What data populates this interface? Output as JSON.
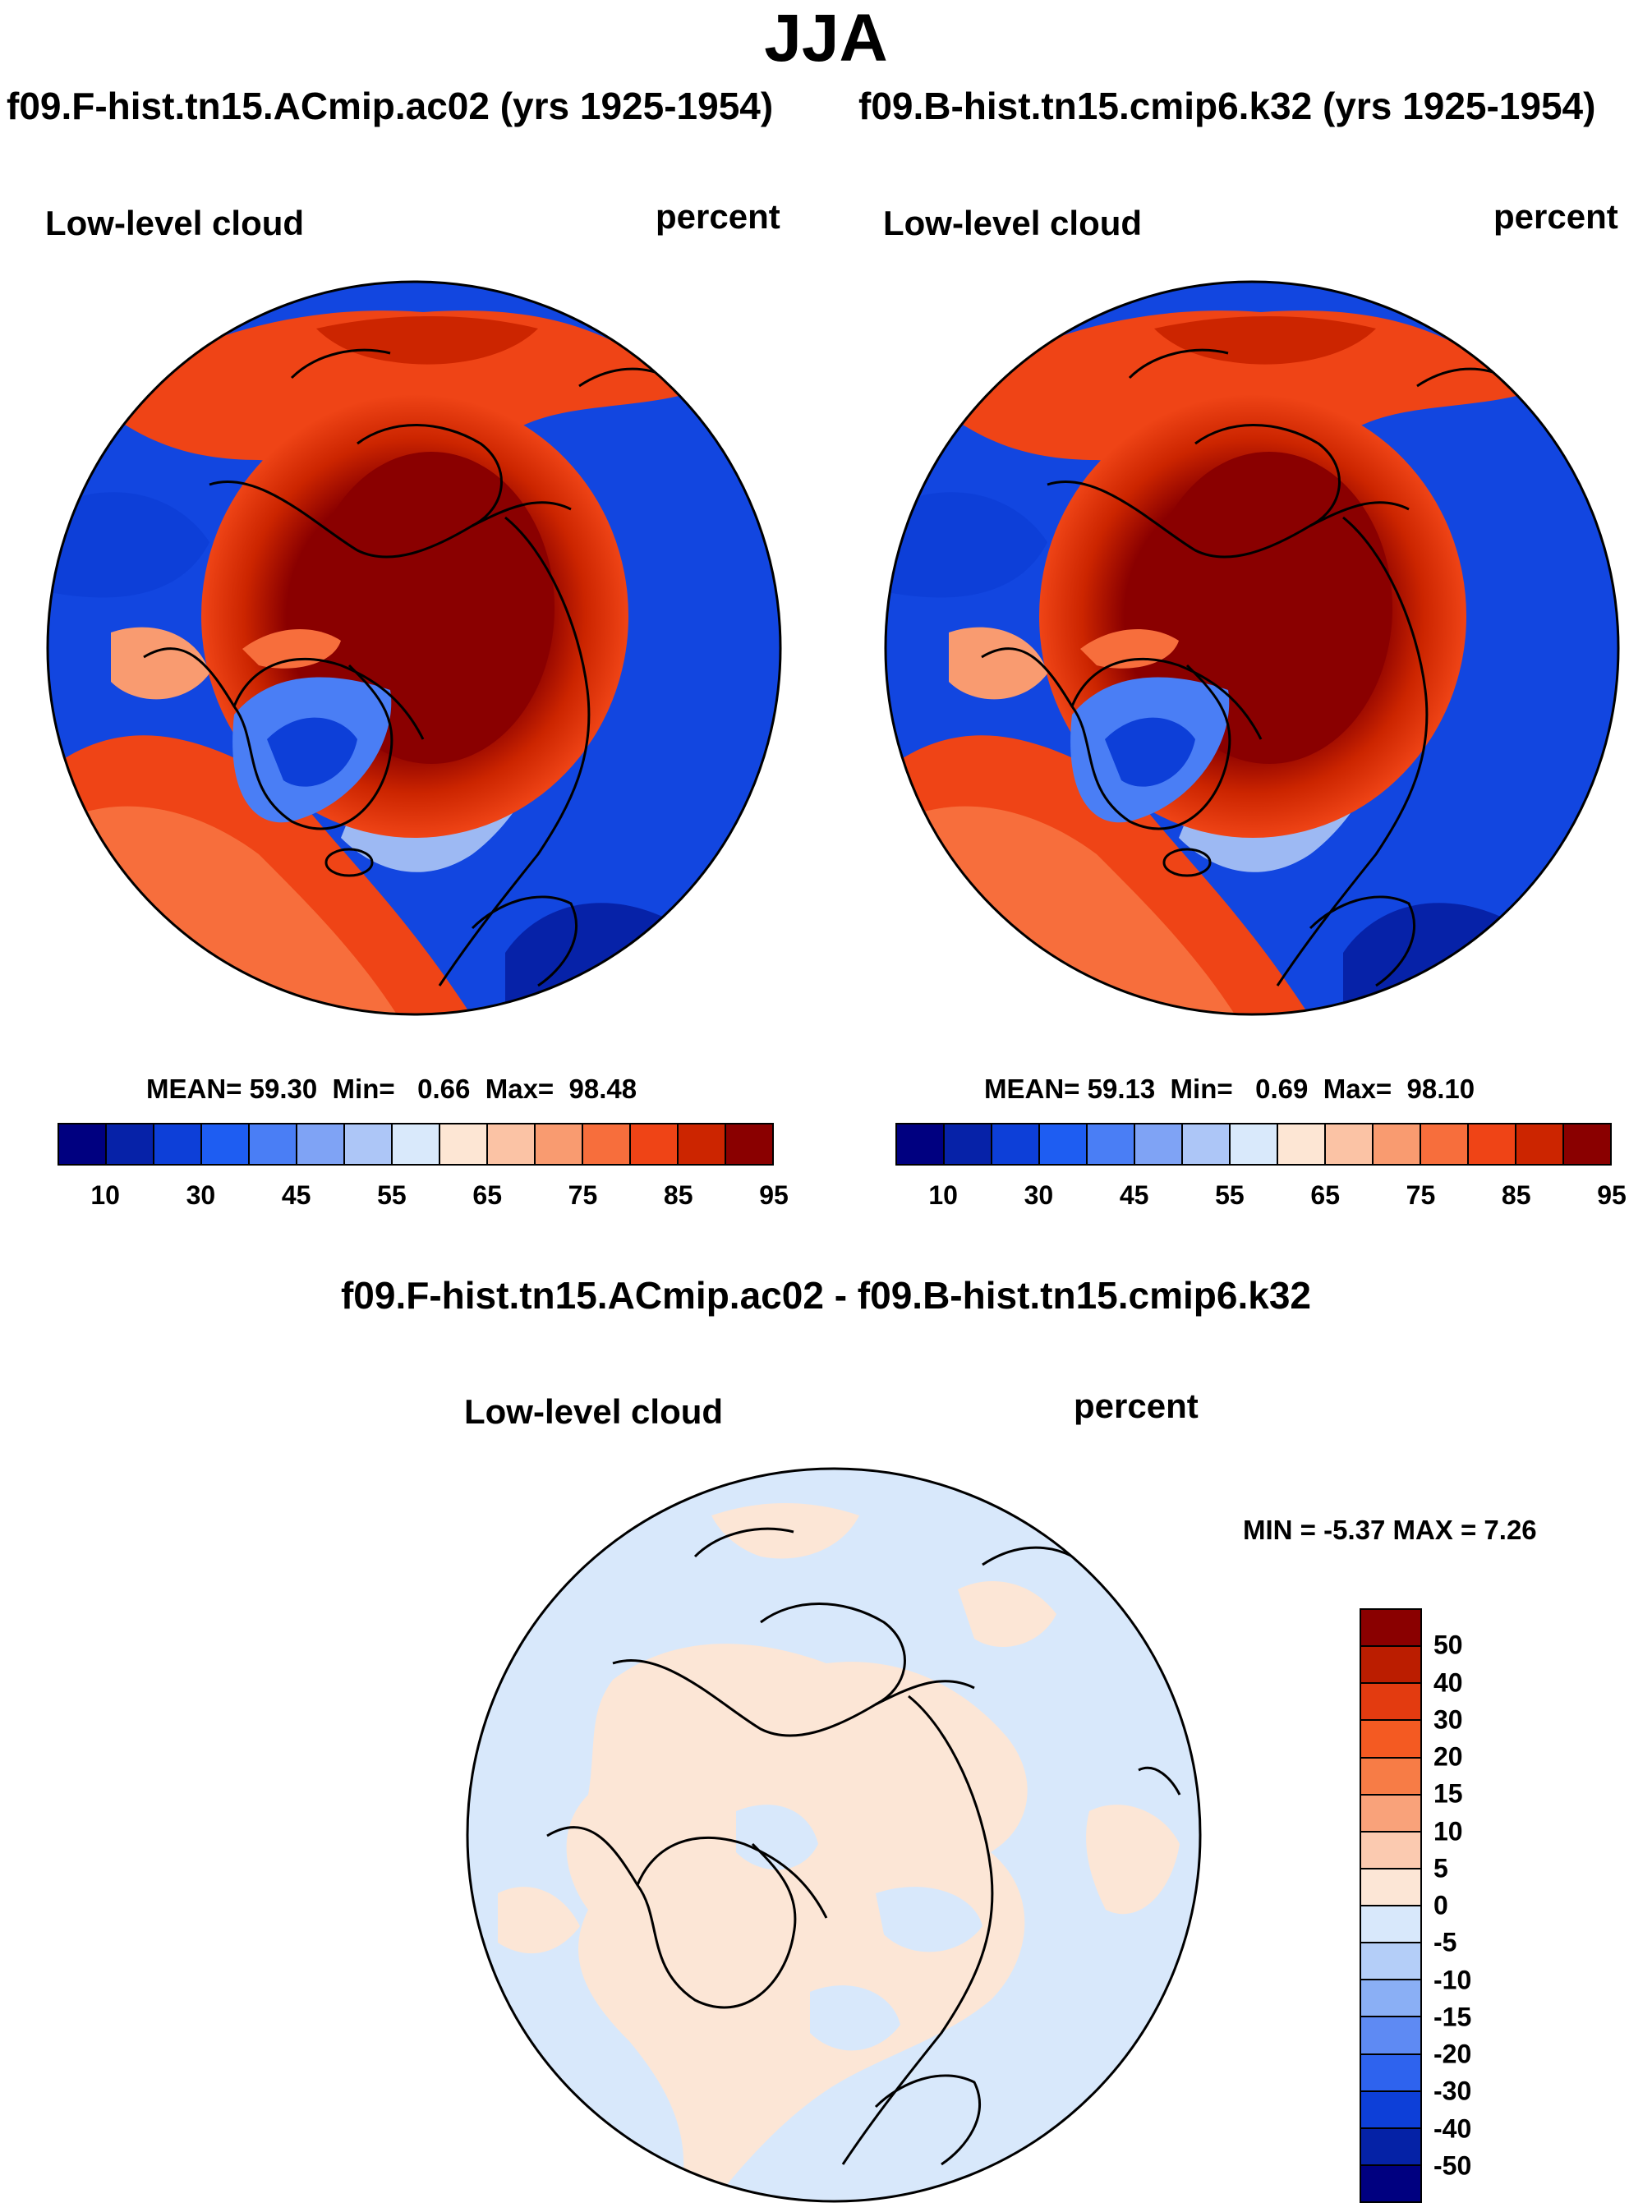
{
  "title": "JJA",
  "units": "percent",
  "panels": [
    {
      "case_title": "f09.F-hist.tn15.ACmip.ac02 (yrs 1925-1954)",
      "variable": "Low-level cloud",
      "units": "percent",
      "stats": {
        "mean_label": "MEAN=",
        "mean": "59.30",
        "min_label": "Min=",
        "min": "0.66",
        "max_label": "Max=",
        "max": "98.48"
      }
    },
    {
      "case_title": "f09.B-hist.tn15.cmip6.k32 (yrs 1925-1954)",
      "variable": "Low-level cloud",
      "units": "percent",
      "stats": {
        "mean_label": "MEAN=",
        "mean": "59.13",
        "min_label": "Min=",
        "min": "0.69",
        "max_label": "Max=",
        "max": "98.10"
      }
    }
  ],
  "difference": {
    "title": "f09.F-hist.tn15.ACmip.ac02 - f09.B-hist.tn15.cmip6.k32",
    "variable": "Low-level cloud",
    "units": "percent",
    "minmax": "MIN =  -5.37 MAX =   7.26"
  },
  "colorbar_main": {
    "colors": [
      "#000080",
      "#0622a8",
      "#0d3fd8",
      "#1e5df2",
      "#4a7ef5",
      "#7fa3f5",
      "#adc6f7",
      "#d9e9fb",
      "#fde6d4",
      "#fbc3a5",
      "#f99b70",
      "#f76e3c",
      "#ef4416",
      "#cc2500",
      "#8a0000"
    ],
    "tick_labels": [
      "10",
      "30",
      "45",
      "55",
      "65",
      "75",
      "85",
      "95"
    ]
  },
  "colorbar_diff": {
    "colors": [
      "#8a0000",
      "#bb1d00",
      "#e33b10",
      "#f45a22",
      "#f77c46",
      "#f9a27a",
      "#fbcab0",
      "#fce6d6",
      "#d8e8fb",
      "#b4cef8",
      "#8aaff5",
      "#5e8af3",
      "#2e63ee",
      "#0d3fd8",
      "#0522a6",
      "#000080"
    ],
    "tick_labels": [
      "50",
      "40",
      "30",
      "20",
      "15",
      "10",
      "5",
      "0",
      "-5",
      "-10",
      "-15",
      "-20",
      "-30",
      "-40",
      "-50"
    ]
  },
  "chart_data": {
    "type": "heatmap",
    "projection": "north polar stereographic",
    "season": "JJA",
    "variable": "Low-level cloud",
    "units": "percent",
    "panels": [
      {
        "case": "f09.F-hist.tn15.ACmip.ac02",
        "years": "1925-1954",
        "mean": 59.3,
        "min": 0.66,
        "max": 98.48
      },
      {
        "case": "f09.B-hist.tn15.cmip6.k32",
        "years": "1925-1954",
        "mean": 59.13,
        "min": 0.69,
        "max": 98.1
      },
      {
        "case": "difference",
        "min": -5.37,
        "max": 7.26
      }
    ],
    "levels_main": [
      5,
      10,
      20,
      30,
      40,
      45,
      50,
      55,
      60,
      65,
      70,
      75,
      80,
      85,
      90,
      95
    ],
    "levels_diff": [
      -50,
      -40,
      -30,
      -20,
      -15,
      -10,
      -5,
      0,
      5,
      10,
      15,
      20,
      30,
      40,
      50
    ]
  }
}
